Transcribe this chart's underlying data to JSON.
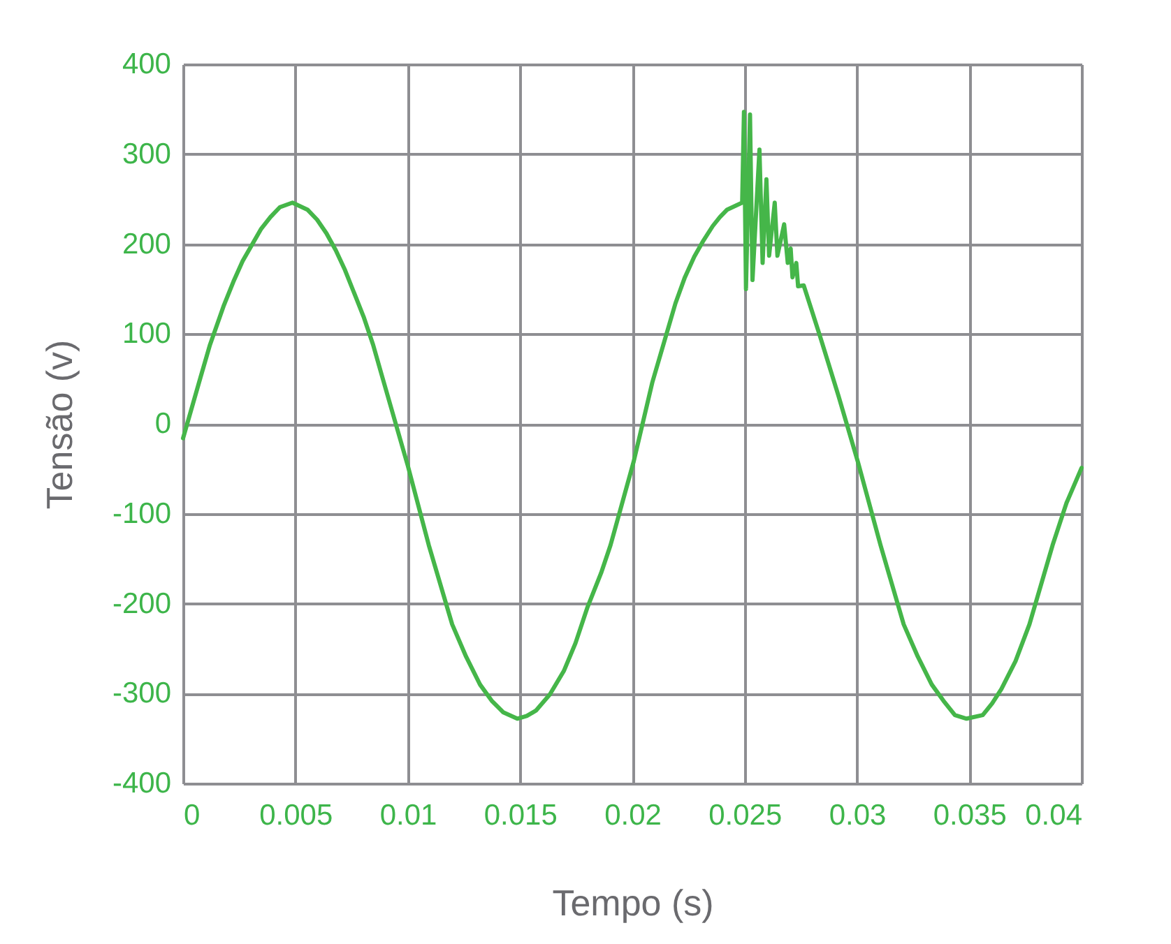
{
  "chart_data": {
    "type": "line",
    "xlabel": "Tempo (s)",
    "ylabel": "Tensão (v)",
    "x": [
      0,
      0.00078,
      0.0012,
      0.00182,
      0.00224,
      0.00265,
      0.00348,
      0.00389,
      0.00431,
      0.00487,
      0.00555,
      0.00597,
      0.00638,
      0.0068,
      0.00721,
      0.00804,
      0.00846,
      0.00887,
      0.01001,
      0.01094,
      0.01198,
      0.0126,
      0.01322,
      0.01374,
      0.01426,
      0.01488,
      0.0153,
      0.01571,
      0.01633,
      0.01695,
      0.01747,
      0.01799,
      0.01861,
      0.01903,
      0.02006,
      0.02089,
      0.02192,
      0.02234,
      0.02276,
      0.02317,
      0.02358,
      0.0239,
      0.02421,
      0.02489,
      0.02497,
      0.02506,
      0.02524,
      0.02535,
      0.02566,
      0.0258,
      0.02597,
      0.02609,
      0.02634,
      0.02646,
      0.02676,
      0.02692,
      0.02705,
      0.02713,
      0.0273,
      0.02738,
      0.02763,
      0.02835,
      0.02918,
      0.03005,
      0.03105,
      0.03208,
      0.03271,
      0.03333,
      0.03385,
      0.03436,
      0.03488,
      0.0356,
      0.03602,
      0.03643,
      0.03706,
      0.03768,
      0.03871,
      0.03933,
      0.04
    ],
    "series": [
      {
        "color": "#45b649",
        "values": [
          -16,
          52,
          88,
          132,
          158,
          181,
          217,
          230,
          241,
          246,
          238,
          227,
          212,
          193,
          171,
          119,
          88,
          52,
          -47,
          -135,
          -223,
          -259,
          -290,
          -308,
          -321,
          -328,
          -325,
          -319,
          -301,
          -275,
          -244,
          -205,
          -166,
          -135,
          -42,
          46,
          134,
          163,
          186,
          204,
          220,
          230,
          238,
          246,
          347,
          150,
          344,
          160,
          305,
          179,
          272,
          187,
          246,
          187,
          222,
          179,
          195,
          163,
          179,
          153,
          154,
          98,
          31,
          -43,
          -135,
          -223,
          -259,
          -290,
          -308,
          -324,
          -328,
          -324,
          -311,
          -295,
          -264,
          -223,
          -135,
          -88,
          -49
        ]
      }
    ],
    "xlim": [
      0,
      0.04
    ],
    "xticks": [
      0,
      0.005,
      0.01,
      0.015,
      0.02,
      0.025,
      0.03,
      0.035,
      0.04
    ],
    "ylim": [
      -400,
      400
    ],
    "yticks": [
      -400,
      -300,
      -200,
      -100,
      0,
      100,
      200,
      300,
      400
    ],
    "grid": true
  }
}
